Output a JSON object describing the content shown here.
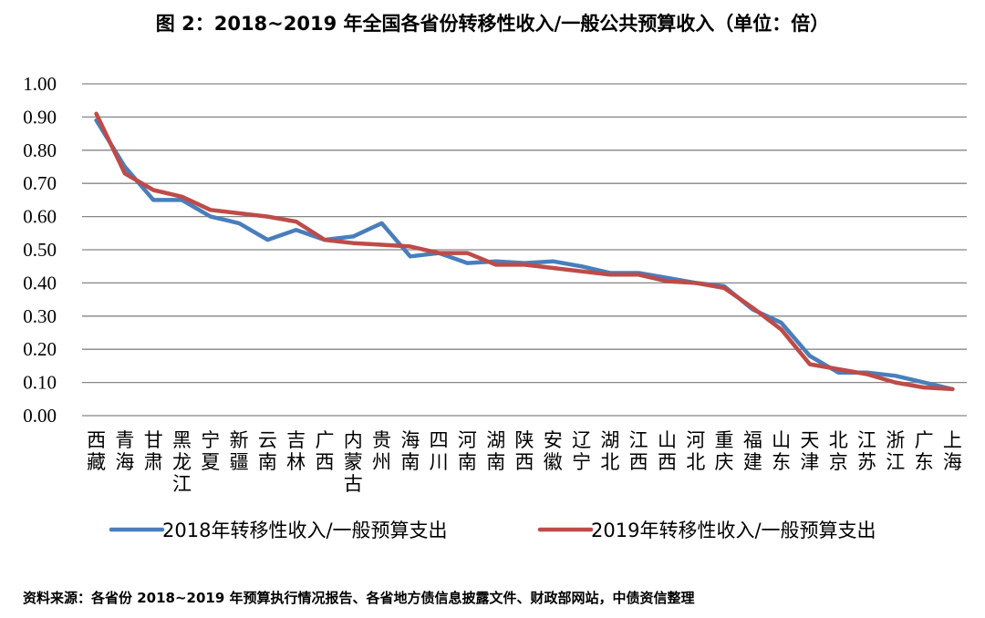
{
  "chart_data": {
    "type": "line",
    "title": "图 2：2018~2019 年全国各省份转移性收入/一般公共预算收入（单位：倍）",
    "categories": [
      "西藏",
      "青海",
      "甘肃",
      "黑龙江",
      "宁夏",
      "新疆",
      "云南",
      "吉林",
      "广西",
      "内蒙古",
      "贵州",
      "海南",
      "四川",
      "河南",
      "湖南",
      "陕西",
      "安徽",
      "辽宁",
      "湖北",
      "江西",
      "山西",
      "河北",
      "重庆",
      "福建",
      "山东",
      "天津",
      "北京",
      "江苏",
      "浙江",
      "广东",
      "上海"
    ],
    "series": [
      {
        "name": "2018年转移性收入/一般预算支出",
        "color": "#4A7EBB",
        "values": [
          0.89,
          0.75,
          0.65,
          0.65,
          0.6,
          0.58,
          0.53,
          0.56,
          0.53,
          0.54,
          0.58,
          0.48,
          0.49,
          0.46,
          0.465,
          0.46,
          0.465,
          0.45,
          0.43,
          0.43,
          0.415,
          0.4,
          0.39,
          0.32,
          0.28,
          0.18,
          0.13,
          0.13,
          0.12,
          0.1,
          0.08
        ]
      },
      {
        "name": "2019年转移性收入/一般预算支出",
        "color": "#BE4B48",
        "values": [
          0.91,
          0.73,
          0.68,
          0.66,
          0.62,
          0.61,
          0.6,
          0.585,
          0.53,
          0.52,
          0.515,
          0.51,
          0.49,
          0.49,
          0.455,
          0.455,
          0.445,
          0.435,
          0.425,
          0.425,
          0.405,
          0.4,
          0.385,
          0.325,
          0.26,
          0.155,
          0.14,
          0.125,
          0.1,
          0.085,
          0.08
        ]
      }
    ],
    "y_ticks": [
      "0.00",
      "0.10",
      "0.20",
      "0.30",
      "0.40",
      "0.50",
      "0.60",
      "0.70",
      "0.80",
      "0.90",
      "1.00"
    ],
    "ylim": [
      0,
      1.0
    ],
    "grid": true,
    "legend_position": "bottom",
    "xlabel": "",
    "ylabel": ""
  },
  "footer": {
    "source": "资料来源：各省份 2018~2019 年预算执行情况报告、各省地方债信息披露文件、财政部网站，中债资信整理"
  },
  "colors": {
    "gridline": "#868686",
    "axis": "#868686"
  }
}
